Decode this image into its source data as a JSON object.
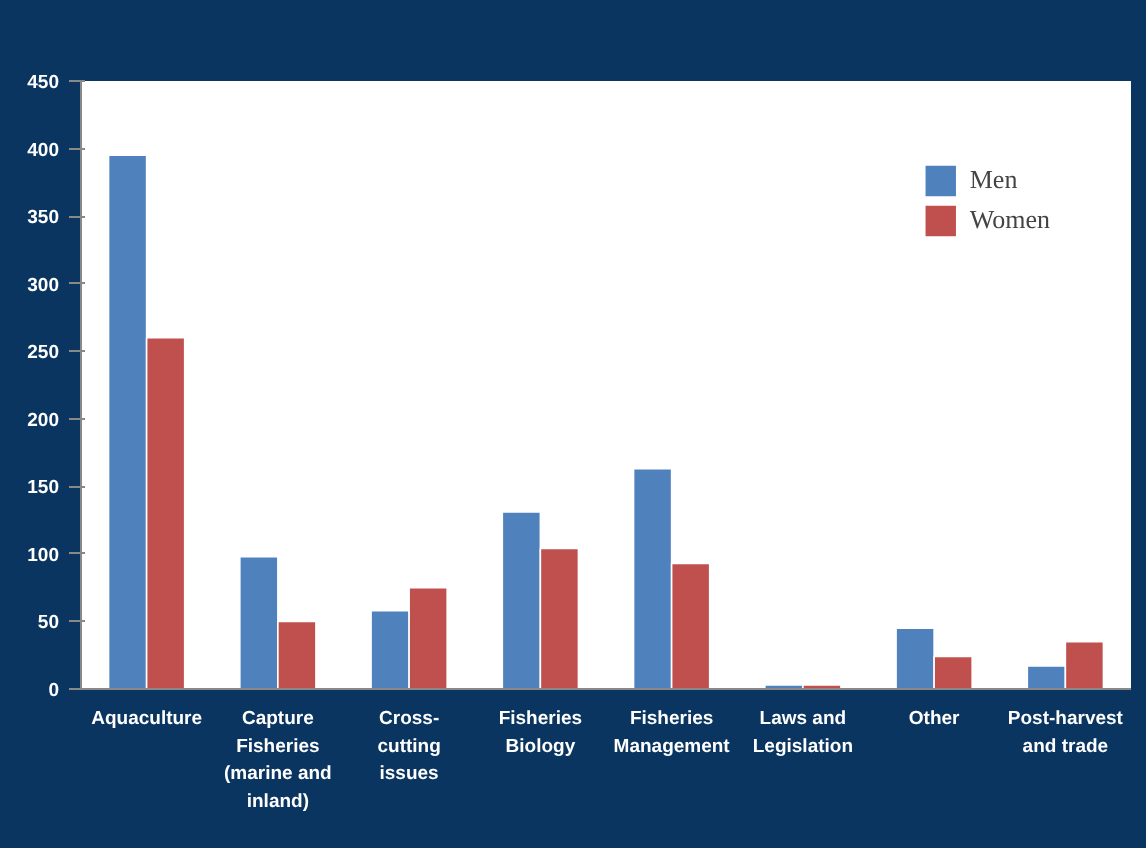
{
  "chart_data": {
    "type": "bar",
    "categories": [
      "Aquaculture",
      "Capture Fisheries (marine and inland)",
      "Cross-cutting issues",
      "Fisheries Biology",
      "Fisheries Management",
      "Laws and Legislation",
      "Other",
      "Post-harvest and trade"
    ],
    "series": [
      {
        "name": "Men",
        "color": "#4f81bd",
        "values": [
          395,
          98,
          58,
          131,
          163,
          3,
          45,
          17
        ]
      },
      {
        "name": "Women",
        "color": "#c0504d",
        "values": [
          260,
          50,
          75,
          104,
          93,
          3,
          24,
          35
        ]
      }
    ],
    "ylim": [
      0,
      450
    ],
    "yticks": [
      0,
      50,
      100,
      150,
      200,
      250,
      300,
      350,
      400,
      450
    ],
    "grid": false,
    "legend": "top right"
  }
}
